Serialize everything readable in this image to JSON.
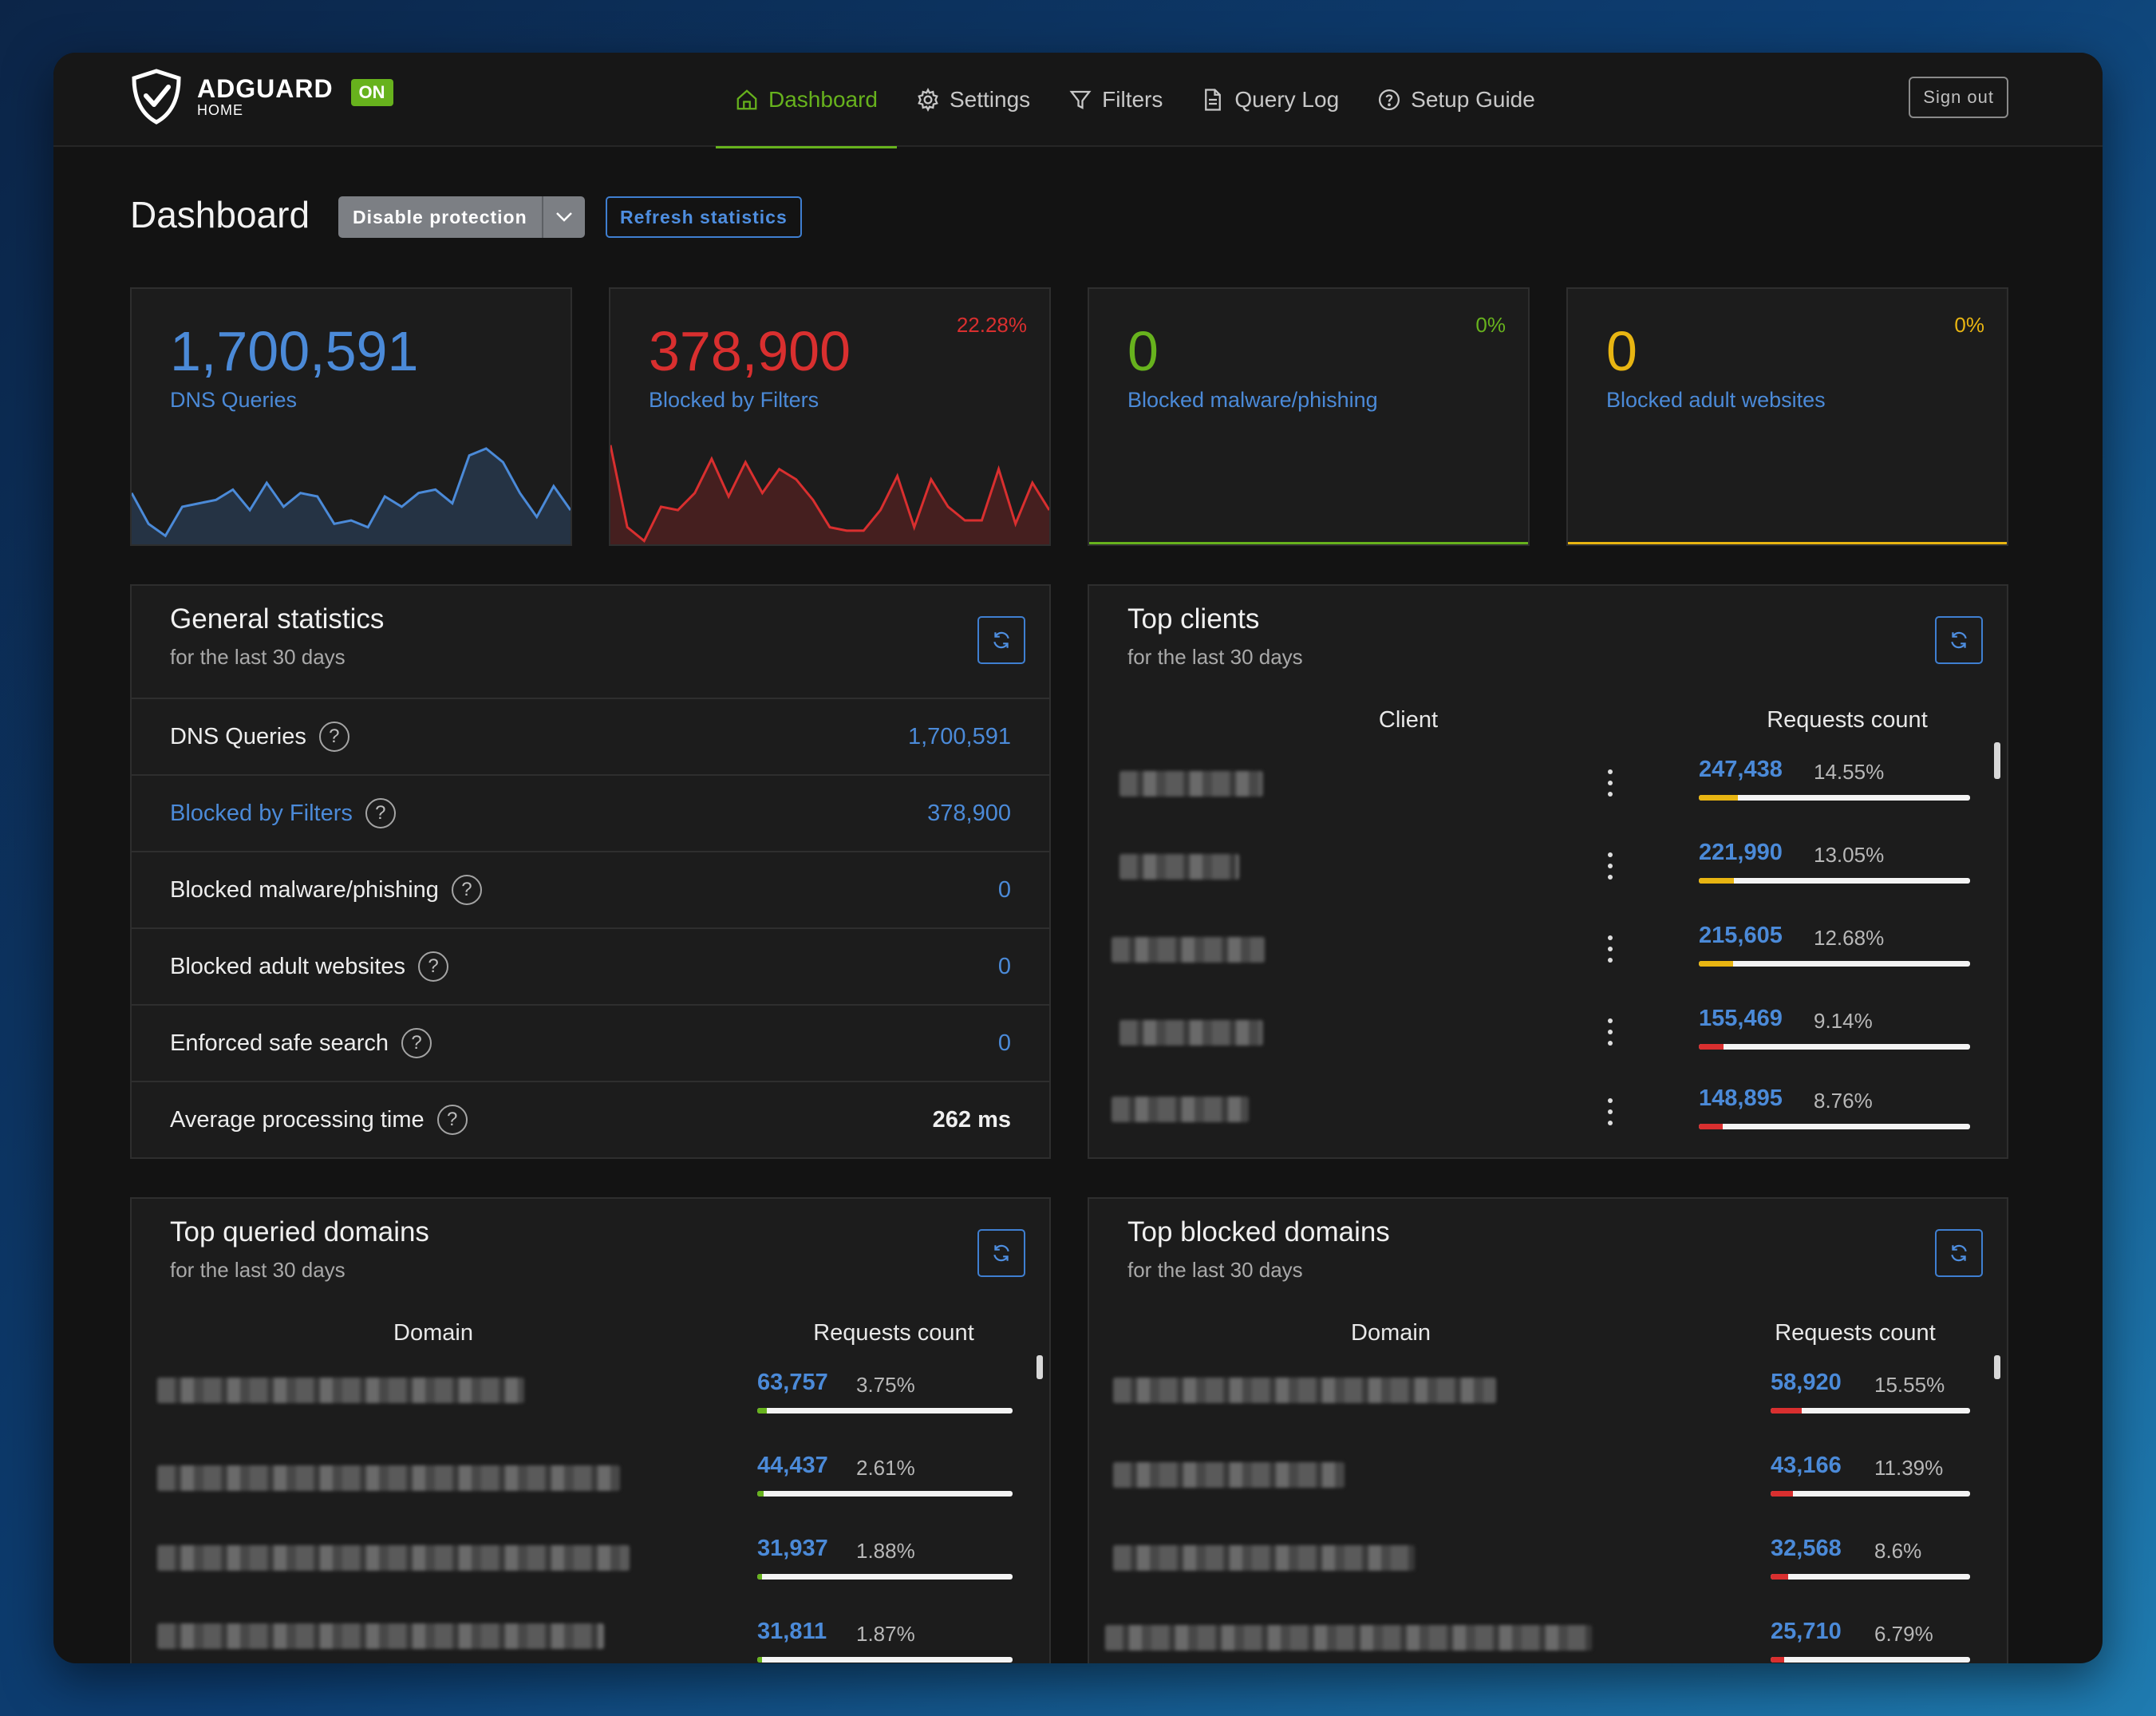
{
  "header": {
    "logo_name": "ADGUARD",
    "logo_sub": "HOME",
    "status_badge": "ON",
    "nav": [
      {
        "label": "Dashboard",
        "icon": "home-icon",
        "active": true
      },
      {
        "label": "Settings",
        "icon": "gear-icon",
        "active": false
      },
      {
        "label": "Filters",
        "icon": "filter-icon",
        "active": false
      },
      {
        "label": "Query Log",
        "icon": "document-icon",
        "active": false
      },
      {
        "label": "Setup Guide",
        "icon": "help-circle-icon",
        "active": false
      }
    ],
    "sign_out": "Sign out"
  },
  "page": {
    "title": "Dashboard",
    "disable_protection": "Disable protection",
    "refresh_statistics": "Refresh statistics"
  },
  "stat_cards": [
    {
      "value": "1,700,591",
      "label": "DNS Queries",
      "percent": "",
      "color": "#4b8ad8",
      "series": [
        30,
        12,
        5,
        22,
        24,
        26,
        32,
        20,
        36,
        22,
        30,
        28,
        12,
        14,
        10,
        28,
        22,
        30,
        32,
        24,
        52,
        56,
        48,
        30,
        16,
        34,
        20
      ]
    },
    {
      "value": "378,900",
      "label": "Blocked by Filters",
      "percent": "22.28%",
      "color": "#d92f2f",
      "series": [
        58,
        10,
        2,
        22,
        20,
        30,
        50,
        28,
        48,
        30,
        44,
        38,
        26,
        10,
        8,
        8,
        20,
        40,
        10,
        38,
        22,
        14,
        14,
        44,
        12,
        36,
        20
      ]
    },
    {
      "value": "0",
      "label": "Blocked malware/phishing",
      "percent": "0%",
      "color": "#67b21d",
      "series": []
    },
    {
      "value": "0",
      "label": "Blocked adult websites",
      "percent": "0%",
      "color": "#e8b512",
      "series": []
    }
  ],
  "general_stats": {
    "title": "General statistics",
    "subtitle": "for the last 30 days",
    "rows": [
      {
        "label": "DNS Queries",
        "value": "1,700,591"
      },
      {
        "label": "Blocked by Filters",
        "value": "378,900"
      },
      {
        "label": "Blocked malware/phishing",
        "value": "0"
      },
      {
        "label": "Blocked adult websites",
        "value": "0"
      },
      {
        "label": "Enforced safe search",
        "value": "0"
      },
      {
        "label": "Average processing time",
        "value": "262 ms"
      }
    ]
  },
  "top_clients": {
    "title": "Top clients",
    "subtitle": "for the last 30 days",
    "col_client": "Client",
    "col_requests": "Requests count",
    "rows": [
      {
        "count": "247,438",
        "percent": "14.55%",
        "fraction": 0.1455,
        "bar_color": "#e8b512"
      },
      {
        "count": "221,990",
        "percent": "13.05%",
        "fraction": 0.1305,
        "bar_color": "#e8b512"
      },
      {
        "count": "215,605",
        "percent": "12.68%",
        "fraction": 0.1268,
        "bar_color": "#e8b512"
      },
      {
        "count": "155,469",
        "percent": "9.14%",
        "fraction": 0.0914,
        "bar_color": "#d92f2f"
      },
      {
        "count": "148,895",
        "percent": "8.76%",
        "fraction": 0.0876,
        "bar_color": "#d92f2f"
      }
    ]
  },
  "top_queried": {
    "title": "Top queried domains",
    "subtitle": "for the last 30 days",
    "col_domain": "Domain",
    "col_requests": "Requests count",
    "rows": [
      {
        "count": "63,757",
        "percent": "3.75%",
        "fraction": 0.0375,
        "bar_color": "#67b21d"
      },
      {
        "count": "44,437",
        "percent": "2.61%",
        "fraction": 0.0261,
        "bar_color": "#67b21d"
      },
      {
        "count": "31,937",
        "percent": "1.88%",
        "fraction": 0.0188,
        "bar_color": "#67b21d"
      },
      {
        "count": "31,811",
        "percent": "1.87%",
        "fraction": 0.0187,
        "bar_color": "#67b21d"
      }
    ]
  },
  "top_blocked": {
    "title": "Top blocked domains",
    "subtitle": "for the last 30 days",
    "col_domain": "Domain",
    "col_requests": "Requests count",
    "rows": [
      {
        "count": "58,920",
        "percent": "15.55%",
        "fraction": 0.1555,
        "bar_color": "#d92f2f"
      },
      {
        "count": "43,166",
        "percent": "11.39%",
        "fraction": 0.1139,
        "bar_color": "#d92f2f"
      },
      {
        "count": "32,568",
        "percent": "8.6%",
        "fraction": 0.086,
        "bar_color": "#d92f2f"
      },
      {
        "count": "25,710",
        "percent": "6.79%",
        "fraction": 0.0679,
        "bar_color": "#d92f2f"
      }
    ]
  }
}
